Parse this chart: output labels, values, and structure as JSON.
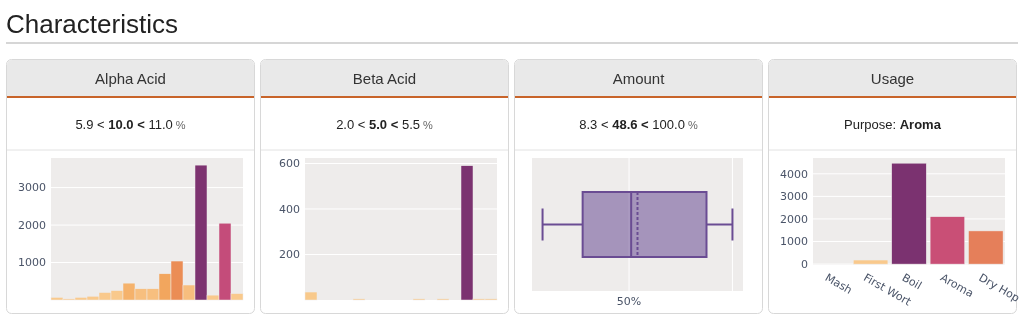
{
  "chart_data": [
    {
      "type": "other",
      "title": "Characteristics"
    },
    {
      "type": "bar",
      "title": "Alpha Acid",
      "subtitle": "5.9 < 10.0 < 11.0 %",
      "categories": [
        null,
        null,
        null,
        null,
        null,
        null,
        null,
        null,
        null,
        null,
        null,
        null,
        null,
        null,
        null,
        null
      ],
      "values": [
        70,
        30,
        70,
        100,
        200,
        250,
        450,
        300,
        300,
        700,
        1040,
        400,
        3600,
        130,
        2050,
        170
      ],
      "colors": [
        "#f9c98c",
        "#f9c98c",
        "#f9c98c",
        "#f9c98c",
        "#f9c98c",
        "#f9c98c",
        "#f5b26b",
        "#f7bf7f",
        "#f7bf7f",
        "#f2a65e",
        "#eb8d55",
        "#f7be7e",
        "#7d3370",
        "#f9c98c",
        "#c44c7a",
        "#f9c98c"
      ],
      "ylim": [
        0,
        3790
      ],
      "yticks": [
        1000,
        2000,
        3000
      ],
      "grid": "y",
      "tick_labels": "y"
    },
    {
      "type": "bar",
      "title": "Beta Acid",
      "subtitle": "2.0 < 5.0 < 5.5 %",
      "categories": [
        null,
        null,
        null,
        null,
        null,
        null,
        null,
        null,
        null,
        null,
        null,
        null,
        null,
        null,
        null,
        null
      ],
      "values": [
        35,
        0,
        0,
        0,
        5,
        0,
        0,
        0,
        0,
        5,
        0,
        5,
        0,
        590,
        5,
        5
      ],
      "colors": [
        "#f8c98b",
        "#f8c98b",
        "#f8c98b",
        "#f8c98b",
        "#f8c98b",
        "#f8c98b",
        "#f8c98b",
        "#f8c98b",
        "#f8c98b",
        "#f8c98b",
        "#f8c98b",
        "#f8c98b",
        "#f8c98b",
        "#7b3270",
        "#f8c98b",
        "#f8c98b"
      ],
      "ylim": [
        0,
        624
      ],
      "yticks": [
        200,
        400,
        600
      ],
      "grid": "y",
      "tick_labels": "y"
    },
    {
      "type": "other",
      "title": "Amount",
      "subtitle": "8.3 < 48.6 < 100.0 %",
      "annotations": [
        "50%"
      ]
    },
    {
      "type": "bar",
      "title": "Usage",
      "subtitle": "Purpose: Aroma",
      "categories": [
        "Mash",
        "First Wort",
        "Boil",
        "Aroma",
        "Dry Hop"
      ],
      "values": [
        0,
        180,
        4470,
        2100,
        1470
      ],
      "colors": [
        "#f9d9a0",
        "#f9c98c",
        "#7b3270",
        "#c94f76",
        "#e57f5a"
      ],
      "ylim": [
        -40,
        4700
      ],
      "yticks": [
        0,
        1000,
        2000,
        3000,
        4000
      ],
      "grid": "y"
    }
  ]
}
